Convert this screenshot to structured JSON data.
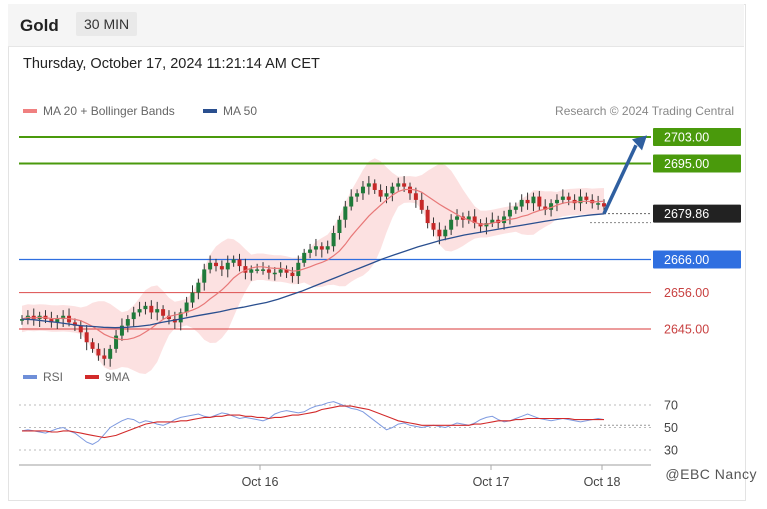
{
  "header": {
    "title": "Gold",
    "timeframe": "30 MIN"
  },
  "timestamp": "Thursday, October 17, 2024 11:21:14 AM CET",
  "legend": {
    "ma20": {
      "label": "MA 20 + Bollinger Bands",
      "color": "#f08080"
    },
    "ma50": {
      "label": "MA 50",
      "color": "#2a4f8f"
    }
  },
  "credit": "Research © 2024 Trading Central",
  "rsi_legend": {
    "rsi": {
      "label": "RSI",
      "color": "#6f8fd8"
    },
    "ma9": {
      "label": "9MA",
      "color": "#d22a2a"
    }
  },
  "watermark": "@EBC  Nancy",
  "chart_data": [
    {
      "type": "candlestick",
      "title": "Gold",
      "timeframe": "30 MIN",
      "x_labels": [
        "Oct 16",
        "Oct 17",
        "Oct 18"
      ],
      "ylim": [
        2628,
        2710
      ],
      "last_price": "2679.86",
      "levels": [
        {
          "label": "2703.00",
          "value": 2703.0,
          "kind": "target",
          "color": "#4a9a0c"
        },
        {
          "label": "2695.00",
          "value": 2695.0,
          "kind": "target",
          "color": "#4a9a0c"
        },
        {
          "label": "2666.00",
          "value": 2666.0,
          "kind": "pivot",
          "color": "#2f6fe0"
        },
        {
          "label": "2656.00",
          "value": 2656.0,
          "kind": "support",
          "color": "#e06060"
        },
        {
          "label": "2645.00",
          "value": 2645.0,
          "kind": "support",
          "color": "#e06060"
        }
      ],
      "close_series": [
        2648,
        2649,
        2648,
        2649,
        2648,
        2647,
        2648,
        2649,
        2647,
        2646,
        2644,
        2641,
        2639,
        2637,
        2636,
        2639,
        2643,
        2646,
        2648,
        2650,
        2651,
        2652,
        2650,
        2651,
        2649,
        2648,
        2647,
        2650,
        2653,
        2656,
        2659,
        2663,
        2665,
        2664,
        2663,
        2665,
        2666,
        2664,
        2662,
        2663,
        2663,
        2663,
        2662,
        2662,
        2663,
        2662,
        2661,
        2665,
        2668,
        2669,
        2670,
        2669,
        2670,
        2674,
        2678,
        2682,
        2685,
        2686,
        2688,
        2689,
        2687,
        2685,
        2686,
        2688,
        2689,
        2688,
        2686,
        2684,
        2681,
        2677,
        2675,
        2673,
        2675,
        2678,
        2679,
        2678,
        2679,
        2677,
        2676,
        2677,
        2678,
        2677,
        2679,
        2681,
        2682,
        2684,
        2683,
        2685,
        2682,
        2681,
        2683,
        2684,
        2685,
        2684,
        2683,
        2685,
        2684,
        2683,
        2683,
        2682
      ],
      "ma50_series": [
        2648,
        2647.8,
        2647.4,
        2647,
        2646.5,
        2646,
        2645.8,
        2645.5,
        2645.4,
        2645.5,
        2645.8,
        2646.2,
        2647,
        2647.6,
        2648.3,
        2649,
        2649.6,
        2650.2,
        2651,
        2651.6,
        2652.3,
        2653,
        2654,
        2655.2,
        2656.4,
        2657.8,
        2659.2,
        2660.6,
        2662,
        2663.4,
        2664.8,
        2666.2,
        2667.4,
        2668.6,
        2669.8,
        2670.8,
        2671.8,
        2672.6,
        2673.4,
        2674,
        2674.6,
        2675.2,
        2675.8,
        2676.4,
        2677,
        2677.6,
        2678.1,
        2678.6,
        2679.1,
        2679.5,
        2679.8
      ],
      "series": [
        {
          "name": "MA 20 + Bollinger Bands"
        },
        {
          "name": "MA 50"
        }
      ]
    },
    {
      "type": "line",
      "series_names": [
        "RSI",
        "9MA"
      ],
      "y_ticks": [
        70,
        50,
        30
      ],
      "ylim": [
        25,
        78
      ],
      "rsi": [
        47,
        48,
        47,
        46,
        45,
        47,
        49,
        50,
        47,
        45,
        41,
        37,
        35,
        38,
        44,
        50,
        53,
        56,
        58,
        57,
        54,
        56,
        55,
        53,
        52,
        54,
        57,
        59,
        60,
        61,
        62,
        60,
        59,
        61,
        63,
        62,
        60,
        58,
        59,
        58,
        57,
        56,
        58,
        62,
        64,
        65,
        64,
        63,
        64,
        67,
        69,
        70,
        72,
        73,
        71,
        69,
        67,
        66,
        64,
        60,
        56,
        52,
        48,
        50,
        53,
        54,
        52,
        51,
        50,
        51,
        52,
        51,
        50,
        52,
        54,
        53,
        52,
        54,
        57,
        59,
        60,
        57,
        55,
        56,
        58,
        60,
        62,
        60,
        58,
        57,
        56,
        57,
        58,
        57,
        56,
        55,
        56,
        57,
        58,
        57
      ],
      "ma9": [
        47,
        47,
        47,
        47,
        47,
        46,
        46,
        47,
        47,
        46,
        45,
        44,
        43,
        42,
        41,
        42,
        43,
        45,
        47,
        49,
        51,
        53,
        54,
        55,
        55,
        55,
        55,
        56,
        56,
        57,
        58,
        59,
        59,
        60,
        60,
        61,
        61,
        61,
        60,
        60,
        59,
        59,
        58,
        59,
        59,
        60,
        61,
        61,
        62,
        63,
        64,
        66,
        67,
        68,
        69,
        69,
        69,
        68,
        67,
        66,
        64,
        62,
        60,
        58,
        56,
        55,
        54,
        53,
        52,
        52,
        52,
        52,
        52,
        52,
        52,
        52,
        52,
        53,
        53,
        54,
        55,
        56,
        56,
        56,
        57,
        57,
        58,
        58,
        58,
        58,
        58,
        58,
        58,
        58,
        57,
        57,
        57,
        57,
        57,
        57
      ]
    }
  ]
}
